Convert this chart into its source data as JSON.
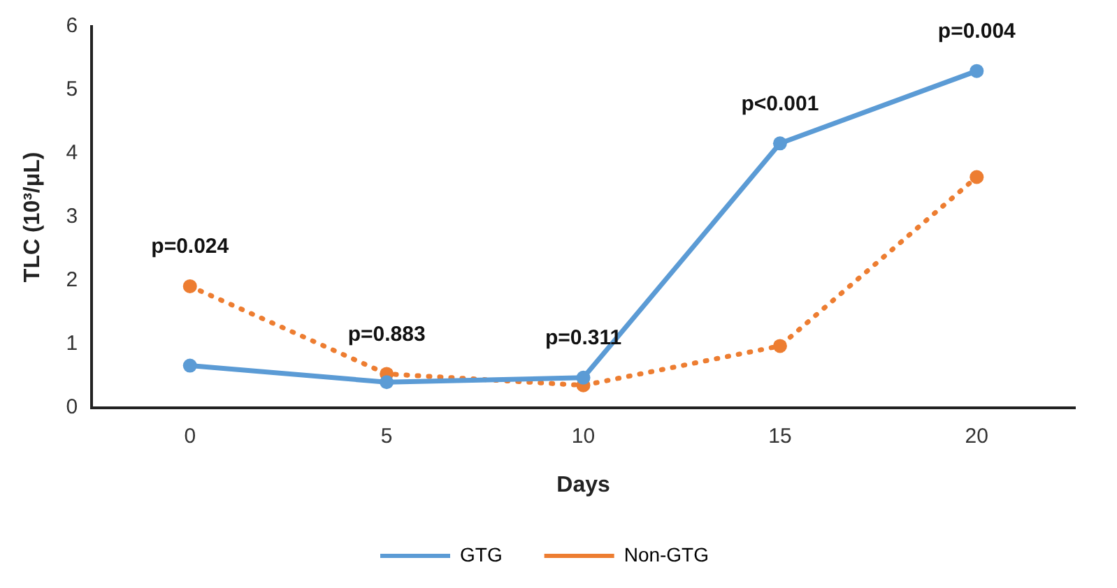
{
  "chart_data": {
    "type": "line",
    "xlabel": "Days",
    "ylabel": "TLC (10³/μL)",
    "categories": [
      "0",
      "5",
      "10",
      "15",
      "20"
    ],
    "series": [
      {
        "name": "GTG",
        "color": "#5b9bd5",
        "values": [
          0.66,
          0.4,
          0.47,
          4.16,
          5.3
        ],
        "line_style": "solid"
      },
      {
        "name": "Non-GTG",
        "color": "#ed7d31",
        "values": [
          1.91,
          0.53,
          0.35,
          0.97,
          3.63
        ],
        "line_style": "dotted"
      }
    ],
    "ylim": [
      0,
      6
    ],
    "yticks": [
      0,
      1,
      2,
      3,
      4,
      5,
      6
    ],
    "grid": false,
    "legend": "bottom",
    "marker": "circle",
    "annotations": [
      "p=0.024",
      "p=0.883",
      "p=0.311",
      "p<0.001",
      "p=0.004"
    ]
  }
}
